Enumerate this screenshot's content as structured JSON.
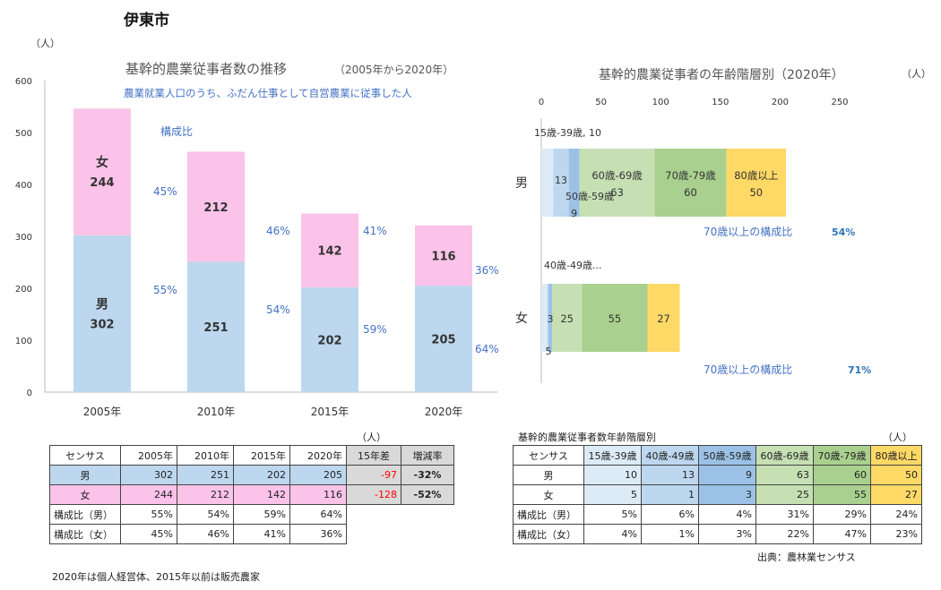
{
  "page": {
    "city": "伊東市",
    "footnote": "2020年は個人経営体、2015年以前は販売農家",
    "source": "出典：農林業センサス"
  },
  "colors": {
    "male": "#BDD7EE",
    "female": "#FBC3E9",
    "pct_text": "#4472C4",
    "diff_red": "#FF0000"
  },
  "chart_data": [
    {
      "type": "bar",
      "stacked": true,
      "title": "基幹的農業従事者数の推移",
      "title_suffix": "（2005年から2020年）",
      "subtitle": "農業就業人口のうち、ふだん仕事として自営農業に従事した人",
      "y_unit": "（人）",
      "ylim": [
        0,
        600
      ],
      "yticks": [
        "0",
        "100",
        "200",
        "300",
        "400",
        "500",
        "600"
      ],
      "categories": [
        "2005年",
        "2010年",
        "2015年",
        "2020年"
      ],
      "series": [
        {
          "name": "男",
          "values": [
            302,
            251,
            202,
            205
          ]
        },
        {
          "name": "女",
          "values": [
            244,
            212,
            142,
            116
          ]
        }
      ],
      "ratio_label": "構成比",
      "ratio_male": [
        "55%",
        "54%",
        "59%",
        "64%"
      ],
      "ratio_female": [
        "45%",
        "46%",
        "41%",
        "36%"
      ]
    },
    {
      "type": "bar",
      "orientation": "horizontal",
      "stacked": true,
      "title": "基幹的農業従事者の年齢階層別（2020年）",
      "x_unit": "（人）",
      "xlim": [
        0,
        250
      ],
      "xticks": [
        "0",
        "50",
        "100",
        "150",
        "200",
        "250"
      ],
      "categories": [
        "男",
        "女"
      ],
      "series": [
        {
          "name": "15歳-39歳",
          "values": [
            10,
            5
          ]
        },
        {
          "name": "40歳-49歳",
          "values": [
            13,
            1
          ]
        },
        {
          "name": "50歳-59歳",
          "values": [
            9,
            3
          ]
        },
        {
          "name": "60歳-69歳",
          "values": [
            63,
            25
          ]
        },
        {
          "name": "70歳-79歳",
          "values": [
            60,
            55
          ]
        },
        {
          "name": "80歳以上",
          "values": [
            50,
            27
          ]
        }
      ],
      "colors": [
        "#DDEBF7",
        "#BDD7EE",
        "#9BC2E6",
        "#C6E0B4",
        "#A9D08E",
        "#FFD966"
      ],
      "callouts": {
        "m15": "15歳-39歳, 10",
        "m50a": "50歳-59歳",
        "f40": "40歳-49歳..."
      },
      "ratio70_label": "70歳以上の構成比",
      "ratio70": [
        "54%",
        "71%"
      ]
    }
  ],
  "table_left": {
    "unit": "（人）",
    "headers": [
      "センサス",
      "2005年",
      "2010年",
      "2015年",
      "2020年",
      "15年差",
      "増減率"
    ],
    "rows": [
      {
        "label": "男",
        "vals": [
          "302",
          "251",
          "202",
          "205"
        ],
        "diff": "-97",
        "rate": "-32%"
      },
      {
        "label": "女",
        "vals": [
          "244",
          "212",
          "142",
          "116"
        ],
        "diff": "-128",
        "rate": "-52%"
      },
      {
        "label": "構成比（男）",
        "vals": [
          "55%",
          "54%",
          "59%",
          "64%"
        ]
      },
      {
        "label": "構成比（女）",
        "vals": [
          "45%",
          "46%",
          "41%",
          "36%"
        ]
      }
    ]
  },
  "table_right": {
    "title": "基幹的農業従事者数年齢階層別",
    "unit": "（人）",
    "headers": [
      "センサス",
      "15歳-39歳",
      "40歳-49歳",
      "50歳-59歳",
      "60歳-69歳",
      "70歳-79歳",
      "80歳以上"
    ],
    "rows": [
      {
        "label": "男",
        "vals": [
          "10",
          "13",
          "9",
          "63",
          "60",
          "50"
        ]
      },
      {
        "label": "女",
        "vals": [
          "5",
          "1",
          "3",
          "25",
          "55",
          "27"
        ]
      },
      {
        "label": "構成比（男）",
        "vals": [
          "5%",
          "6%",
          "4%",
          "31%",
          "29%",
          "24%"
        ]
      },
      {
        "label": "構成比（女）",
        "vals": [
          "4%",
          "1%",
          "3%",
          "22%",
          "47%",
          "23%"
        ]
      }
    ]
  }
}
